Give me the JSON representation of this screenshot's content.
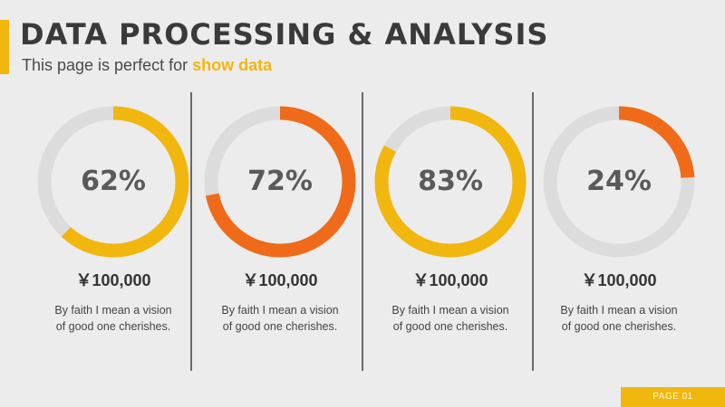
{
  "header": {
    "title": "DATA PROCESSING & ANALYSIS",
    "subtitle_prefix": "This page is perfect for ",
    "subtitle_highlight": "show data"
  },
  "colors": {
    "yellow": "#f1b70f",
    "orange": "#ef6b1a",
    "track": "#dcdcdc"
  },
  "metrics": [
    {
      "percent_label": "62%",
      "value": 0.62,
      "color": "yellow",
      "amount": "￥100,000",
      "desc_line1": "By faith I mean a vision",
      "desc_line2": "of good one cherishes."
    },
    {
      "percent_label": "72%",
      "value": 0.72,
      "color": "orange",
      "amount": "￥100,000",
      "desc_line1": "By faith I mean a vision",
      "desc_line2": "of good one cherishes."
    },
    {
      "percent_label": "83%",
      "value": 0.83,
      "color": "yellow",
      "amount": "￥100,000",
      "desc_line1": "By faith I mean a vision",
      "desc_line2": "of good one cherishes."
    },
    {
      "percent_label": "24%",
      "value": 0.24,
      "color": "orange",
      "amount": "￥100,000",
      "desc_line1": "By faith I mean a vision",
      "desc_line2": "of good one cherishes."
    }
  ],
  "footer": {
    "page_label": "PAGE 01"
  }
}
